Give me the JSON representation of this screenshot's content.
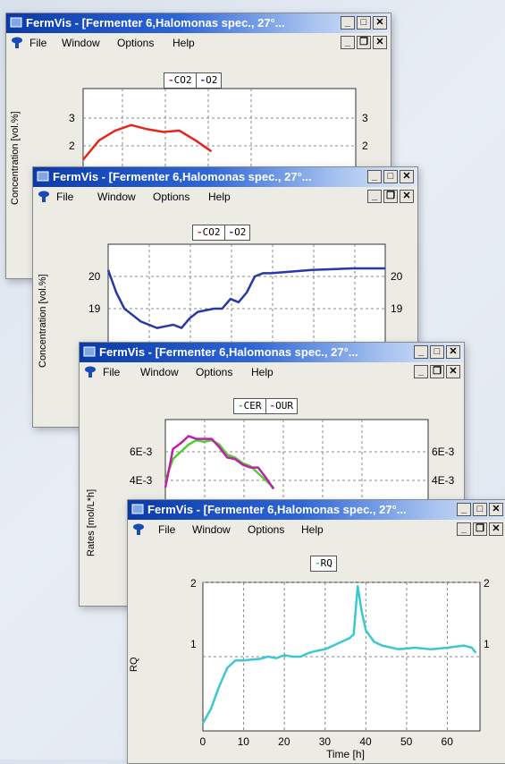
{
  "windows": [
    {
      "title": "FermVis - [Fermenter 6,Halomonas spec., 27°...",
      "menu": [
        "File",
        "Window",
        "Options",
        "Help"
      ],
      "legend": [
        {
          "label": "CO2",
          "color": "#e8241c"
        },
        {
          "label": "O2",
          "color": "#2838a8"
        }
      ],
      "ylabel": "Concentration [vol.%]",
      "yticks": [
        "3",
        "2"
      ]
    },
    {
      "title": "FermVis - [Fermenter 6,Halomonas spec., 27°...",
      "menu": [
        "File",
        "Window",
        "Options",
        "Help"
      ],
      "legend": [
        {
          "label": "CO2",
          "color": "#e8241c"
        },
        {
          "label": "O2",
          "color": "#2838a8"
        }
      ],
      "ylabel": "Concentration [vol.%]",
      "yticks": [
        "20",
        "19"
      ]
    },
    {
      "title": "FermVis - [Fermenter 6,Halomonas spec., 27°...",
      "menu": [
        "File",
        "Window",
        "Options",
        "Help"
      ],
      "legend": [
        {
          "label": "CER",
          "color": "#4cd030"
        },
        {
          "label": "OUR",
          "color": "#c020a8"
        }
      ],
      "ylabel": "Rates [mol/L*h]",
      "yticks": [
        "6E-3",
        "4E-3"
      ]
    },
    {
      "title": "FermVis - [Fermenter 6,Halomonas spec., 27°...",
      "menu": [
        "File",
        "Window",
        "Options",
        "Help"
      ],
      "legend": [
        {
          "label": "RQ",
          "color": "#3cc8d0"
        }
      ],
      "ylabel": "RQ",
      "yticks": [
        "2",
        "1"
      ],
      "xticks": [
        "0",
        "10",
        "20",
        "30",
        "40",
        "50",
        "60"
      ],
      "xlabel": "Time [h]"
    }
  ],
  "chart_data": [
    {
      "type": "line",
      "ylabel": "Concentration [vol.%]",
      "series": [
        {
          "name": "CO2",
          "color": "#e8241c",
          "x": [
            0,
            4,
            8,
            12,
            16,
            20,
            24,
            28,
            32
          ],
          "y": [
            1.5,
            2.2,
            2.55,
            2.75,
            2.6,
            2.5,
            2.55,
            2.2,
            1.8
          ]
        }
      ]
    },
    {
      "type": "line",
      "ylabel": "Concentration [vol.%]",
      "series": [
        {
          "name": "O2",
          "color": "#2838a8",
          "x": [
            0,
            2,
            4,
            6,
            8,
            10,
            12,
            14,
            16,
            18,
            20,
            22,
            26,
            28,
            30,
            32,
            34,
            36,
            38,
            40,
            50,
            60,
            68
          ],
          "y": [
            20.2,
            19.5,
            19.0,
            18.8,
            18.6,
            18.5,
            18.4,
            18.45,
            18.5,
            18.4,
            18.7,
            18.9,
            19.0,
            19.0,
            19.3,
            19.2,
            19.5,
            20.0,
            20.1,
            20.1,
            20.2,
            20.25,
            20.25
          ]
        }
      ]
    },
    {
      "type": "line",
      "ylabel": "Rates [mol/L*h]",
      "series": [
        {
          "name": "CER",
          "color": "#4cd030",
          "x": [
            0,
            2,
            4,
            6,
            8,
            10,
            12,
            14,
            16,
            18,
            20,
            22,
            24,
            26,
            28
          ],
          "y": [
            0.004,
            0.0055,
            0.006,
            0.0065,
            0.0068,
            0.0067,
            0.0068,
            0.0065,
            0.0058,
            0.0056,
            0.0052,
            0.005,
            0.0045,
            0.004,
            0.0035
          ]
        },
        {
          "name": "OUR",
          "color": "#c020a8",
          "x": [
            0,
            2,
            4,
            6,
            8,
            10,
            12,
            14,
            16,
            18,
            20,
            22,
            24,
            26,
            28
          ],
          "y": [
            0.0035,
            0.0062,
            0.0066,
            0.0071,
            0.0069,
            0.0069,
            0.0069,
            0.0063,
            0.0056,
            0.0055,
            0.0051,
            0.0049,
            0.0049,
            0.0042,
            0.0034
          ]
        }
      ]
    },
    {
      "type": "line",
      "xlabel": "Time [h]",
      "ylabel": "RQ",
      "xlim": [
        0,
        68
      ],
      "ylim": [
        0,
        2
      ],
      "series": [
        {
          "name": "RQ",
          "color": "#3cc8d0",
          "x": [
            0,
            2,
            4,
            6,
            8,
            10,
            12,
            14,
            16,
            18,
            20,
            22,
            24,
            26,
            28,
            30,
            32,
            34,
            36,
            37,
            38,
            39,
            40,
            42,
            44,
            48,
            52,
            56,
            60,
            64,
            66,
            67
          ],
          "y": [
            0.1,
            0.3,
            0.6,
            0.85,
            0.95,
            0.95,
            0.96,
            0.97,
            1.0,
            0.98,
            1.02,
            1.0,
            1.0,
            1.05,
            1.08,
            1.1,
            1.15,
            1.2,
            1.25,
            1.3,
            1.95,
            1.6,
            1.35,
            1.2,
            1.15,
            1.1,
            1.12,
            1.1,
            1.12,
            1.15,
            1.12,
            1.05
          ]
        }
      ]
    }
  ]
}
